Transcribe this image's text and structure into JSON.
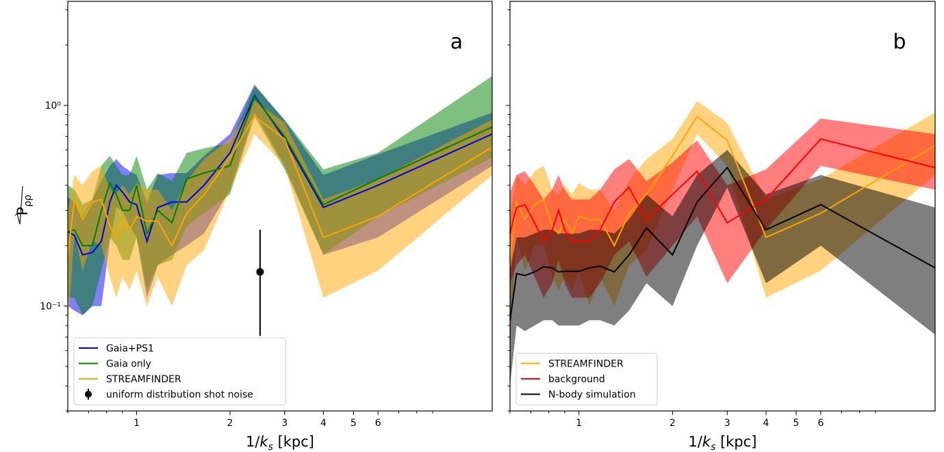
{
  "figure": {
    "ylabel_main": "P",
    "ylabel_sub": "ρρ",
    "xlabel_main": "1/",
    "xlabel_var": "k",
    "xlabel_sub": "s",
    "xlabel_unit": "[kpc]"
  },
  "chart_data": [
    {
      "type": "line",
      "panel_label": "a",
      "xscale": "log",
      "yscale": "log",
      "xlim": [
        0.6,
        14
      ],
      "ylim": [
        0.03,
        3.3
      ],
      "x_ticks": [
        1,
        2,
        3,
        4,
        5,
        6
      ],
      "x_tick_labels": [
        "1",
        "2",
        "3",
        "4",
        "5",
        "6"
      ],
      "y_ticks": [
        0.1,
        1
      ],
      "y_tick_labels": [
        "10⁻¹",
        "10⁰"
      ],
      "legend_position": "lower-left",
      "x": [
        0.6,
        0.63,
        0.67,
        0.72,
        0.77,
        0.82,
        0.86,
        0.9,
        0.95,
        1.0,
        1.08,
        1.17,
        1.3,
        1.45,
        1.65,
        2.0,
        2.4,
        3.0,
        4.0,
        6.0,
        14.0
      ],
      "series": [
        {
          "name": "Gaia+PS1",
          "color": "#0000dd",
          "band_color": "#0000ff",
          "band_opacity": 0.5,
          "values": [
            0.235,
            0.225,
            0.18,
            0.185,
            0.21,
            0.33,
            0.4,
            0.37,
            0.33,
            0.32,
            0.21,
            0.31,
            0.33,
            0.33,
            0.4,
            0.58,
            1.12,
            0.68,
            0.31,
            0.4,
            0.72
          ],
          "lower": [
            0.1,
            0.095,
            0.09,
            0.1,
            0.1,
            0.21,
            0.31,
            0.3,
            0.25,
            0.22,
            0.11,
            0.16,
            0.18,
            0.2,
            0.23,
            0.38,
            0.92,
            0.5,
            0.18,
            0.22,
            0.5
          ],
          "upper": [
            0.35,
            0.33,
            0.28,
            0.34,
            0.42,
            0.5,
            0.54,
            0.5,
            0.47,
            0.45,
            0.33,
            0.45,
            0.46,
            0.46,
            0.56,
            0.72,
            1.27,
            0.84,
            0.45,
            0.57,
            0.92
          ]
        },
        {
          "name": "Gaia only",
          "color": "#008000",
          "band_color": "#008000",
          "band_opacity": 0.5,
          "values": [
            0.235,
            0.24,
            0.2,
            0.2,
            0.3,
            0.41,
            0.36,
            0.3,
            0.3,
            0.4,
            0.23,
            0.3,
            0.26,
            0.43,
            0.46,
            0.5,
            1.1,
            0.7,
            0.32,
            0.43,
            0.78
          ],
          "lower": [
            0.11,
            0.11,
            0.09,
            0.1,
            0.15,
            0.22,
            0.2,
            0.17,
            0.17,
            0.22,
            0.12,
            0.16,
            0.17,
            0.25,
            0.29,
            0.36,
            0.88,
            0.48,
            0.18,
            0.28,
            0.55
          ],
          "upper": [
            0.4,
            0.38,
            0.32,
            0.34,
            0.5,
            0.56,
            0.5,
            0.45,
            0.45,
            0.56,
            0.38,
            0.46,
            0.42,
            0.58,
            0.61,
            0.65,
            1.25,
            0.85,
            0.48,
            0.58,
            1.4
          ]
        },
        {
          "name": "STREAMFINDER",
          "color": "#ffa500",
          "band_color": "#ffa500",
          "band_opacity": 0.5,
          "values": [
            0.175,
            0.34,
            0.27,
            0.33,
            0.34,
            0.25,
            0.22,
            0.27,
            0.24,
            0.28,
            0.265,
            0.265,
            0.2,
            0.29,
            0.36,
            0.55,
            0.88,
            0.68,
            0.22,
            0.28,
            0.62
          ],
          "lower": [
            0.075,
            0.23,
            0.15,
            0.21,
            0.2,
            0.14,
            0.11,
            0.14,
            0.12,
            0.15,
            0.1,
            0.14,
            0.1,
            0.16,
            0.19,
            0.38,
            0.72,
            0.5,
            0.11,
            0.15,
            0.45
          ],
          "upper": [
            0.29,
            0.45,
            0.4,
            0.47,
            0.5,
            0.38,
            0.36,
            0.4,
            0.36,
            0.41,
            0.38,
            0.38,
            0.3,
            0.42,
            0.54,
            0.68,
            1.05,
            0.82,
            0.34,
            0.43,
            0.85
          ]
        }
      ],
      "errorbar": {
        "name": "uniform distribution shot noise",
        "color": "#000000",
        "x": 2.5,
        "y": 0.148,
        "lower": 0.071,
        "upper": 0.24
      }
    },
    {
      "type": "line",
      "panel_label": "b",
      "xscale": "log",
      "yscale": "log",
      "xlim": [
        0.6,
        14
      ],
      "ylim": [
        0.03,
        3.3
      ],
      "x_ticks": [
        1,
        2,
        3,
        4,
        5,
        6
      ],
      "x_tick_labels": [
        "1",
        "2",
        "3",
        "4",
        "5",
        "6"
      ],
      "legend_position": "lower-left",
      "x": [
        0.6,
        0.63,
        0.67,
        0.72,
        0.77,
        0.82,
        0.86,
        0.9,
        0.95,
        1.0,
        1.08,
        1.17,
        1.3,
        1.45,
        1.65,
        2.0,
        2.4,
        3.0,
        4.0,
        6.0,
        14.0
      ],
      "series": [
        {
          "name": "STREAMFINDER",
          "color": "#ffa500",
          "band_color": "#ffa500",
          "band_opacity": 0.5,
          "values": [
            0.17,
            0.33,
            0.27,
            0.32,
            0.34,
            0.25,
            0.23,
            0.27,
            0.23,
            0.28,
            0.27,
            0.27,
            0.2,
            0.29,
            0.36,
            0.56,
            0.88,
            0.67,
            0.22,
            0.29,
            0.63
          ],
          "lower": [
            0.06,
            0.22,
            0.15,
            0.2,
            0.2,
            0.14,
            0.12,
            0.14,
            0.12,
            0.15,
            0.1,
            0.14,
            0.1,
            0.16,
            0.19,
            0.38,
            0.72,
            0.5,
            0.11,
            0.15,
            0.45
          ],
          "upper": [
            0.28,
            0.45,
            0.4,
            0.47,
            0.5,
            0.38,
            0.36,
            0.4,
            0.36,
            0.41,
            0.38,
            0.38,
            0.3,
            0.42,
            0.54,
            0.68,
            1.05,
            0.82,
            0.34,
            0.43,
            0.92
          ]
        },
        {
          "name": "background",
          "color": "#ff0000",
          "band_color": "#ff0000",
          "band_opacity": 0.5,
          "values": [
            0.23,
            0.31,
            0.32,
            0.26,
            0.21,
            0.24,
            0.3,
            0.24,
            0.21,
            0.21,
            0.21,
            0.24,
            0.33,
            0.39,
            0.27,
            0.36,
            0.47,
            0.26,
            0.34,
            0.68,
            0.49
          ],
          "lower": [
            0.13,
            0.16,
            0.18,
            0.14,
            0.11,
            0.13,
            0.17,
            0.13,
            0.11,
            0.11,
            0.11,
            0.13,
            0.18,
            0.21,
            0.14,
            0.2,
            0.28,
            0.13,
            0.24,
            0.5,
            0.38
          ],
          "upper": [
            0.37,
            0.45,
            0.47,
            0.4,
            0.34,
            0.38,
            0.45,
            0.38,
            0.34,
            0.34,
            0.34,
            0.38,
            0.48,
            0.54,
            0.42,
            0.52,
            0.67,
            0.4,
            0.48,
            0.86,
            0.72
          ]
        },
        {
          "name": "N-body simulation",
          "color": "#000000",
          "band_color": "#000000",
          "band_opacity": 0.5,
          "values": [
            0.085,
            0.145,
            0.142,
            0.148,
            0.157,
            0.155,
            0.148,
            0.149,
            0.149,
            0.149,
            0.155,
            0.158,
            0.148,
            0.18,
            0.245,
            0.18,
            0.33,
            0.49,
            0.24,
            0.32,
            0.155
          ],
          "lower": [
            0.04,
            0.08,
            0.075,
            0.08,
            0.085,
            0.085,
            0.08,
            0.08,
            0.08,
            0.08,
            0.085,
            0.085,
            0.08,
            0.095,
            0.13,
            0.1,
            0.2,
            0.39,
            0.13,
            0.2,
            0.072
          ],
          "upper": [
            0.15,
            0.22,
            0.22,
            0.23,
            0.24,
            0.24,
            0.23,
            0.23,
            0.23,
            0.23,
            0.24,
            0.24,
            0.23,
            0.27,
            0.36,
            0.28,
            0.45,
            0.6,
            0.36,
            0.45,
            0.31
          ]
        }
      ]
    }
  ]
}
